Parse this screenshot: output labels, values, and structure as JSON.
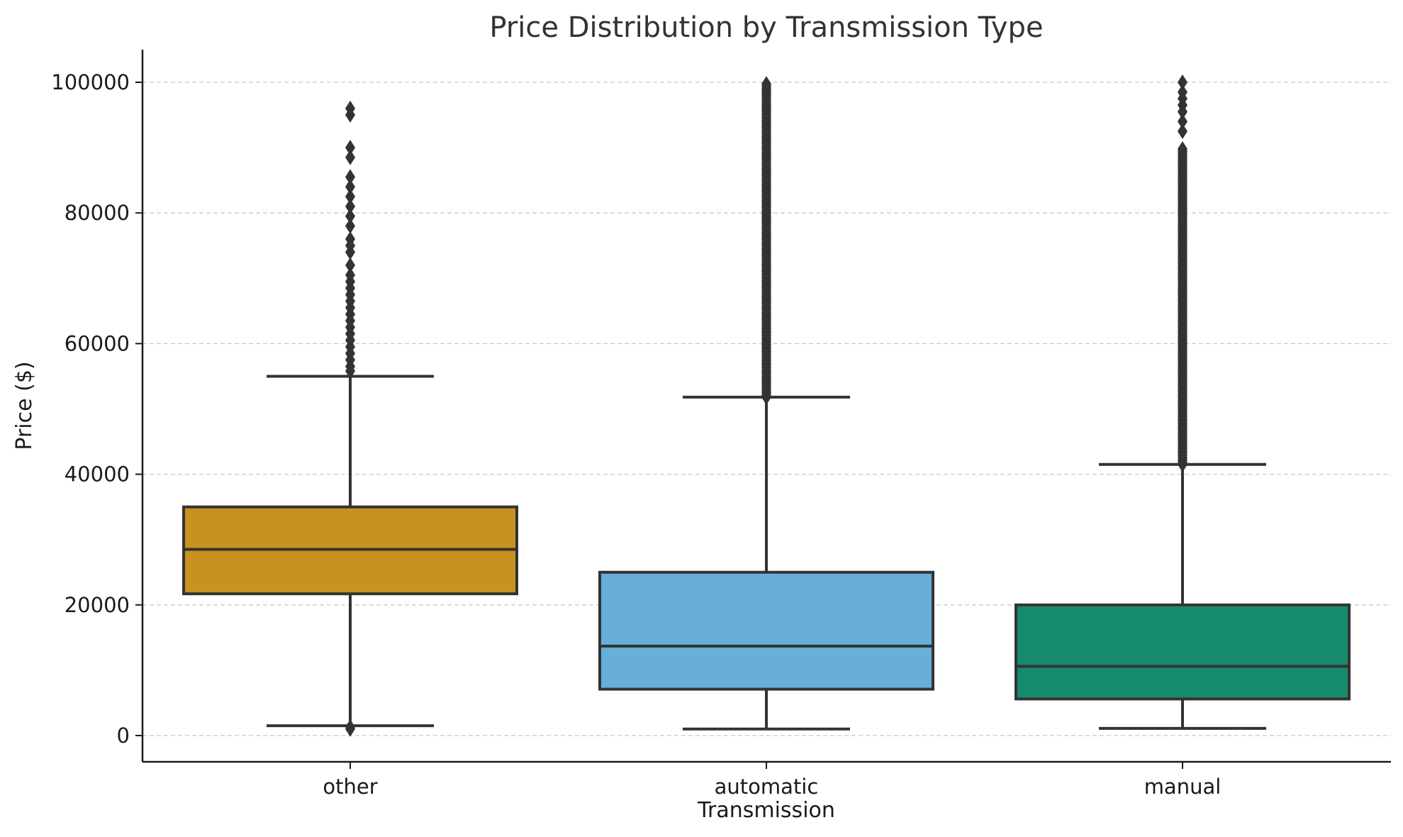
{
  "chart_data": {
    "type": "box",
    "title": "Price Distribution by Transmission Type",
    "xlabel": "Transmission",
    "ylabel": "Price ($)",
    "ylim": [
      -4000,
      105000
    ],
    "yticks": [
      0,
      20000,
      40000,
      60000,
      80000,
      100000
    ],
    "grid": "horizontal dashed",
    "categories": [
      "other",
      "automatic",
      "manual"
    ],
    "series": [
      {
        "category": "other",
        "color": "#C8921E",
        "whisker_low": 1500,
        "q1": 21700,
        "median": 28500,
        "q3": 35000,
        "whisker_high": 55000,
        "outliers": [
          1000,
          1300,
          55800,
          56500,
          57500,
          58500,
          59500,
          60500,
          61500,
          62500,
          63500,
          64500,
          65500,
          66500,
          67500,
          68500,
          69500,
          70500,
          72000,
          74000,
          75000,
          76000,
          78000,
          79500,
          81000,
          82500,
          84000,
          85500,
          88500,
          90000,
          95000,
          96000
        ]
      },
      {
        "category": "automatic",
        "color": "#67AED8",
        "whisker_low": 1000,
        "q1": 7100,
        "median": 13700,
        "q3": 25000,
        "whisker_high": 51800,
        "outliers_range": [
          51800,
          100000
        ]
      },
      {
        "category": "manual",
        "color": "#168A6C",
        "whisker_low": 1100,
        "q1": 5600,
        "median": 10600,
        "q3": 20000,
        "whisker_high": 41500,
        "outliers_range": [
          41500,
          90000
        ],
        "outliers": [
          92500,
          94000,
          95500,
          96500,
          97500,
          98500,
          100000
        ]
      }
    ]
  }
}
